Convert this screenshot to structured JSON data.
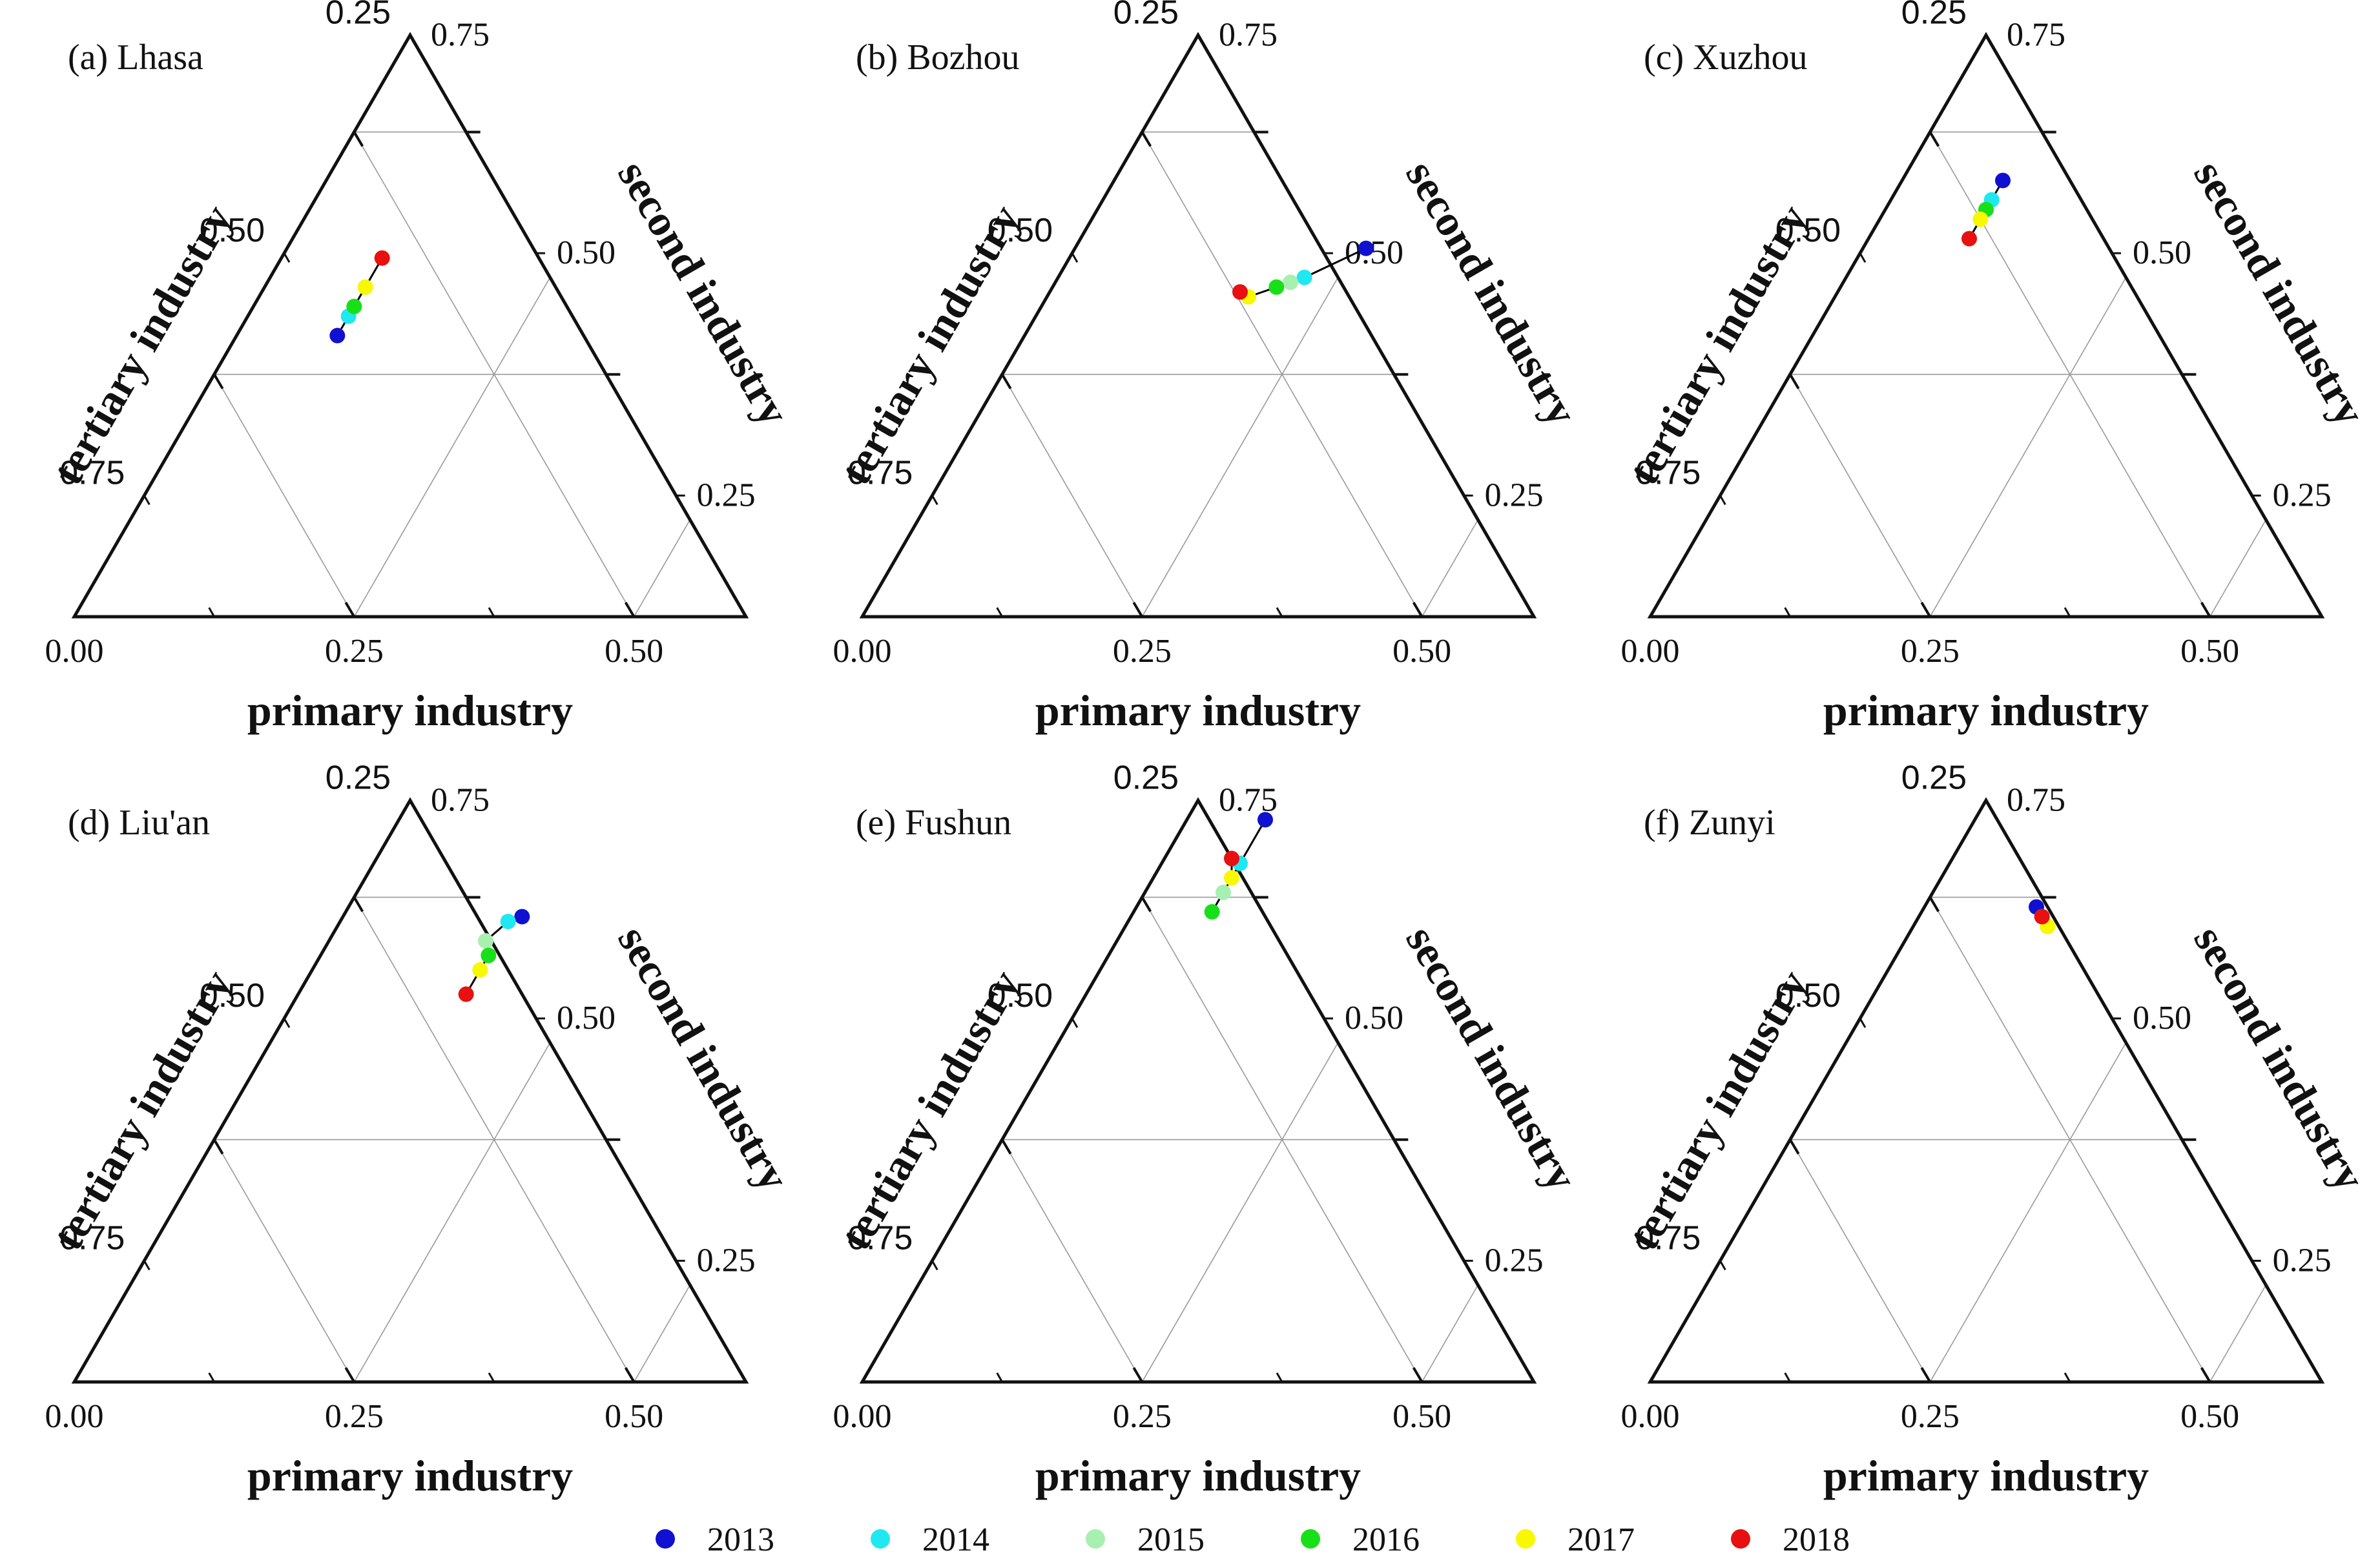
{
  "chart_data": {
    "type": "scatter",
    "subtype": "ternary",
    "years": [
      "2013",
      "2014",
      "2015",
      "2016",
      "2017",
      "2018"
    ],
    "year_colors": [
      "#1010d0",
      "#20e8f0",
      "#a8f0b0",
      "#18e018",
      "#f8f800",
      "#e81010"
    ],
    "axes": {
      "bottom": {
        "title": "primary industry",
        "ticks": [
          "0.00",
          "0.25",
          "0.50"
        ],
        "range": [
          0,
          0.6
        ]
      },
      "left": {
        "title": "tertiary industry",
        "ticks": [
          "0.75",
          "0.50",
          "0.25"
        ],
        "range": [
          0.4,
          1.0
        ]
      },
      "right": {
        "title": "second industry",
        "ticks": [
          "0.25",
          "0.50",
          "0.75"
        ],
        "range": [
          0,
          0.6
        ]
      }
    },
    "panels": [
      {
        "label": "(a) Lhasa",
        "points": [
          {
            "year": "2013",
            "primary": 0.09,
            "secondary": 0.29
          },
          {
            "year": "2014",
            "primary": 0.09,
            "secondary": 0.31
          },
          {
            "year": "2015",
            "primary": 0.09,
            "secondary": 0.32
          },
          {
            "year": "2016",
            "primary": 0.09,
            "secondary": 0.32
          },
          {
            "year": "2017",
            "primary": 0.09,
            "secondary": 0.34
          },
          {
            "year": "2018",
            "primary": 0.09,
            "secondary": 0.37
          }
        ]
      },
      {
        "label": "(b) Bozhou",
        "points": [
          {
            "year": "2013",
            "primary": 0.26,
            "secondary": 0.38
          },
          {
            "year": "2014",
            "primary": 0.22,
            "secondary": 0.35
          },
          {
            "year": "2015",
            "primary": 0.21,
            "secondary": 0.345
          },
          {
            "year": "2016",
            "primary": 0.2,
            "secondary": 0.34
          },
          {
            "year": "2017",
            "primary": 0.18,
            "secondary": 0.33
          },
          {
            "year": "2018",
            "primary": 0.17,
            "secondary": 0.335
          }
        ]
      },
      {
        "label": "(c) Xuzhou",
        "points": [
          {
            "year": "2013",
            "primary": 0.09,
            "secondary": 0.45
          },
          {
            "year": "2014",
            "primary": 0.09,
            "secondary": 0.43
          },
          {
            "year": "2015",
            "primary": 0.09,
            "secondary": 0.42
          },
          {
            "year": "2016",
            "primary": 0.09,
            "secondary": 0.42
          },
          {
            "year": "2017",
            "primary": 0.09,
            "secondary": 0.41
          },
          {
            "year": "2018",
            "primary": 0.09,
            "secondary": 0.39
          }
        ]
      },
      {
        "label": "(d) Liu'an",
        "points": [
          {
            "year": "2013",
            "primary": 0.16,
            "secondary": 0.48
          },
          {
            "year": "2014",
            "primary": 0.15,
            "secondary": 0.475
          },
          {
            "year": "2015",
            "primary": 0.14,
            "secondary": 0.455
          },
          {
            "year": "2016",
            "primary": 0.15,
            "secondary": 0.44
          },
          {
            "year": "2017",
            "primary": 0.15,
            "secondary": 0.425
          },
          {
            "year": "2018",
            "primary": 0.15,
            "secondary": 0.4
          }
        ]
      },
      {
        "label": "(e) Fushun",
        "points": [
          {
            "year": "2013",
            "primary": 0.07,
            "secondary": 0.58
          },
          {
            "year": "2014",
            "primary": 0.07,
            "secondary": 0.535
          },
          {
            "year": "2015",
            "primary": 0.07,
            "secondary": 0.505
          },
          {
            "year": "2016",
            "primary": 0.07,
            "secondary": 0.485
          },
          {
            "year": "2017",
            "primary": 0.07,
            "secondary": 0.52
          },
          {
            "year": "2018",
            "primary": 0.06,
            "secondary": 0.54
          }
        ]
      },
      {
        "label": "(f) Zunyi",
        "points": [
          {
            "year": "2013",
            "primary": 0.1,
            "secondary": 0.49
          },
          {
            "year": "2014",
            "primary": 0.11,
            "secondary": 0.48
          },
          {
            "year": "2015",
            "primary": 0.12,
            "secondary": 0.47
          },
          {
            "year": "2016",
            "primary": 0.12,
            "secondary": 0.47
          },
          {
            "year": "2017",
            "primary": 0.12,
            "secondary": 0.47
          },
          {
            "year": "2018",
            "primary": 0.11,
            "secondary": 0.48
          }
        ]
      }
    ]
  }
}
